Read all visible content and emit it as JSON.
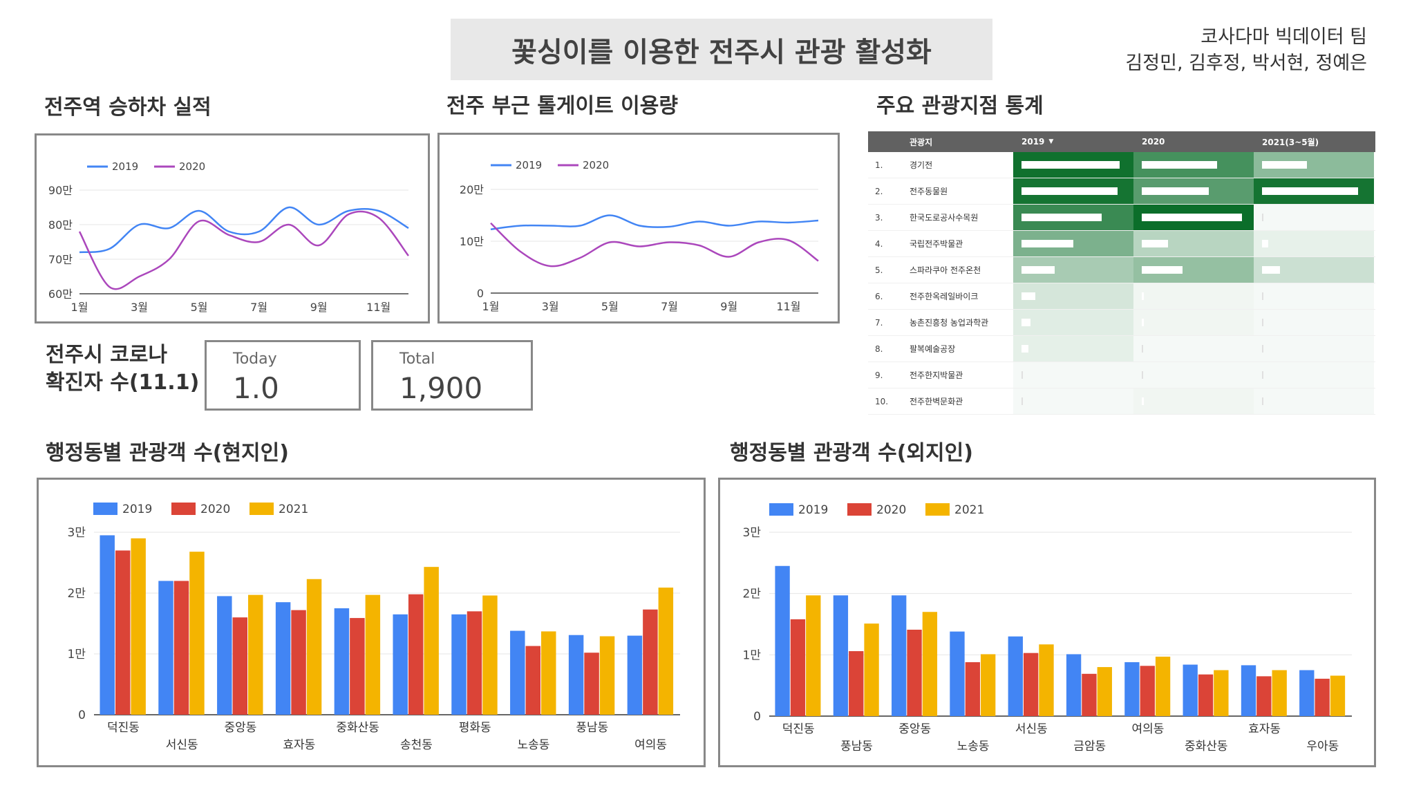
{
  "header": {
    "title": "꽃싱이를 이용한 전주시 관광 활성화",
    "team_name": "코사다마 빅데이터 팀",
    "members": "김정민, 김후정, 박서현, 정예은"
  },
  "sections": {
    "station": "전주역 승하차 실적",
    "tollgate": "전주 부근 톨게이트 이용량",
    "tourist_spots": "주요 관광지점 통계",
    "local": "행정동별 관광객 수(현지인)",
    "outsider": "행정동별 관광객 수(외지인)"
  },
  "covid": {
    "title_line1": "전주시 코로나",
    "title_line2": "확진자 수(11.1)",
    "today_label": "Today",
    "today_value": "1.0",
    "total_label": "Total",
    "total_value": "1,900"
  },
  "table": {
    "headers": [
      "관광지",
      "2019",
      "2020",
      "2021(3~5월)"
    ],
    "sort_icon": "sort-down-icon",
    "rows": [
      {
        "rank": "1.",
        "name": "경기전",
        "values": [
          0.98,
          0.75,
          0.45
        ]
      },
      {
        "rank": "2.",
        "name": "전주동물원",
        "values": [
          0.96,
          0.67,
          0.96
        ]
      },
      {
        "rank": "3.",
        "name": "한국도로공사수목원",
        "values": [
          0.8,
          1.0,
          0.0
        ]
      },
      {
        "rank": "4.",
        "name": "국립전주박물관",
        "values": [
          0.52,
          0.26,
          0.06
        ]
      },
      {
        "rank": "5.",
        "name": "스파라쿠아 전주온천",
        "values": [
          0.33,
          0.41,
          0.18
        ]
      },
      {
        "rank": "6.",
        "name": "전주한옥레일바이크",
        "values": [
          0.14,
          0.02,
          0.0
        ]
      },
      {
        "rank": "7.",
        "name": "농촌진흥청 농업과학관",
        "values": [
          0.09,
          0.02,
          0.0
        ]
      },
      {
        "rank": "8.",
        "name": "팔복예술공장",
        "values": [
          0.07,
          0.0,
          0.0
        ]
      },
      {
        "rank": "9.",
        "name": "전주한지박물관",
        "values": [
          0.0,
          0.0,
          0.0
        ]
      },
      {
        "rank": "10.",
        "name": "전주한벽문화관",
        "values": [
          0.0,
          0.02,
          0.0
        ]
      }
    ]
  },
  "colors": {
    "line_2019": "#4285f4",
    "line_2020": "#ab47bc",
    "bar_2019": "#4285f4",
    "bar_2020": "#db4437",
    "bar_2021": "#f4b400",
    "table_green": "#0b6e2a"
  },
  "chart_data": [
    {
      "id": "station",
      "type": "line",
      "x_labels": [
        "1월",
        "3월",
        "5월",
        "7월",
        "9월",
        "11월"
      ],
      "y_labels": [
        "60만",
        "70만",
        "80만",
        "90만"
      ],
      "ylim": [
        600000,
        900000
      ],
      "legend_position": "top-left",
      "series": [
        {
          "name": "2019",
          "values": [
            720000,
            730000,
            800000,
            790000,
            840000,
            780000,
            780000,
            850000,
            800000,
            840000,
            840000,
            790000
          ]
        },
        {
          "name": "2020",
          "values": [
            780000,
            620000,
            650000,
            700000,
            810000,
            770000,
            750000,
            800000,
            740000,
            830000,
            820000,
            710000
          ]
        }
      ]
    },
    {
      "id": "tollgate",
      "type": "line",
      "x_labels": [
        "1월",
        "3월",
        "5월",
        "7월",
        "9월",
        "11월"
      ],
      "y_labels": [
        "0",
        "10만",
        "20만"
      ],
      "ylim": [
        0,
        200000
      ],
      "legend_position": "top-left",
      "series": [
        {
          "name": "2019",
          "values": [
            123000,
            130000,
            130000,
            130000,
            150000,
            130000,
            128000,
            138000,
            130000,
            138000,
            136000,
            140000
          ]
        },
        {
          "name": "2020",
          "values": [
            135000,
            80000,
            52000,
            68000,
            98000,
            90000,
            98000,
            92000,
            70000,
            98000,
            102000,
            62000
          ]
        }
      ]
    },
    {
      "id": "local",
      "type": "bar",
      "categories": [
        "덕진동",
        "서신동",
        "중앙동",
        "효자동",
        "중화산동",
        "송천동",
        "평화동",
        "노송동",
        "풍남동",
        "여의동"
      ],
      "y_labels": [
        "0",
        "1만",
        "2만",
        "3만"
      ],
      "ylim": [
        0,
        30000
      ],
      "legend_position": "top-left",
      "series": [
        {
          "name": "2019",
          "values": [
            29500,
            22000,
            19500,
            18500,
            17500,
            16500,
            16500,
            13800,
            13100,
            13000
          ]
        },
        {
          "name": "2020",
          "values": [
            27000,
            22000,
            16000,
            17200,
            15900,
            19800,
            17000,
            11300,
            10200,
            17300
          ]
        },
        {
          "name": "2021",
          "values": [
            29000,
            26800,
            19700,
            22300,
            19700,
            24300,
            19600,
            13700,
            12900,
            20900
          ]
        }
      ]
    },
    {
      "id": "outsider",
      "type": "bar",
      "categories": [
        "덕진동",
        "풍남동",
        "중앙동",
        "노송동",
        "서신동",
        "금암동",
        "여의동",
        "중화산동",
        "효자동",
        "우아동"
      ],
      "y_labels": [
        "0",
        "1만",
        "2만",
        "3만"
      ],
      "ylim": [
        0,
        30000
      ],
      "legend_position": "top-left",
      "series": [
        {
          "name": "2019",
          "values": [
            24500,
            19700,
            19700,
            13800,
            13000,
            10100,
            8800,
            8400,
            8300,
            7500
          ]
        },
        {
          "name": "2020",
          "values": [
            15800,
            10600,
            14100,
            8800,
            10300,
            6900,
            8200,
            6800,
            6500,
            6100
          ]
        },
        {
          "name": "2021",
          "values": [
            19700,
            15100,
            17000,
            10100,
            11700,
            8000,
            9700,
            7500,
            7500,
            6600
          ]
        }
      ]
    }
  ]
}
